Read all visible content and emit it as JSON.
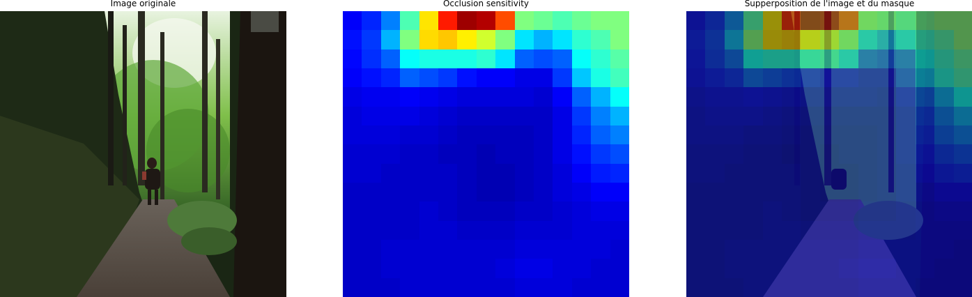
{
  "panels": [
    {
      "title": "Image originale"
    },
    {
      "title": "Occlusion sensitivity"
    },
    {
      "title": "Supperposition de l'image et du masque"
    }
  ],
  "colormap": "jet",
  "sensitivity_grid": [
    [
      0.12,
      0.16,
      0.25,
      0.45,
      0.65,
      0.85,
      0.97,
      0.95,
      0.8,
      0.5,
      0.48,
      0.45,
      0.48,
      0.5,
      0.5
    ],
    [
      0.14,
      0.18,
      0.3,
      0.5,
      0.66,
      0.68,
      0.64,
      0.58,
      0.5,
      0.35,
      0.3,
      0.35,
      0.42,
      0.45,
      0.5
    ],
    [
      0.13,
      0.17,
      0.22,
      0.38,
      0.4,
      0.4,
      0.4,
      0.42,
      0.35,
      0.22,
      0.2,
      0.22,
      0.38,
      0.42,
      0.46
    ],
    [
      0.12,
      0.14,
      0.16,
      0.22,
      0.2,
      0.18,
      0.14,
      0.12,
      0.12,
      0.1,
      0.1,
      0.18,
      0.32,
      0.4,
      0.44
    ],
    [
      0.1,
      0.11,
      0.11,
      0.12,
      0.11,
      0.1,
      0.09,
      0.09,
      0.09,
      0.09,
      0.08,
      0.12,
      0.22,
      0.3,
      0.38
    ],
    [
      0.09,
      0.1,
      0.1,
      0.1,
      0.09,
      0.08,
      0.07,
      0.07,
      0.07,
      0.07,
      0.07,
      0.1,
      0.18,
      0.25,
      0.3
    ],
    [
      0.09,
      0.09,
      0.09,
      0.08,
      0.08,
      0.07,
      0.06,
      0.06,
      0.06,
      0.06,
      0.07,
      0.1,
      0.16,
      0.22,
      0.25
    ],
    [
      0.08,
      0.08,
      0.08,
      0.07,
      0.07,
      0.06,
      0.06,
      0.05,
      0.06,
      0.06,
      0.07,
      0.1,
      0.14,
      0.18,
      0.2
    ],
    [
      0.08,
      0.08,
      0.07,
      0.07,
      0.07,
      0.07,
      0.06,
      0.05,
      0.05,
      0.06,
      0.07,
      0.09,
      0.12,
      0.15,
      0.16
    ],
    [
      0.07,
      0.07,
      0.07,
      0.07,
      0.07,
      0.07,
      0.06,
      0.05,
      0.05,
      0.06,
      0.07,
      0.09,
      0.1,
      0.12,
      0.12
    ],
    [
      0.07,
      0.07,
      0.07,
      0.07,
      0.08,
      0.07,
      0.06,
      0.06,
      0.06,
      0.07,
      0.07,
      0.08,
      0.09,
      0.1,
      0.1
    ],
    [
      0.07,
      0.07,
      0.07,
      0.07,
      0.08,
      0.08,
      0.07,
      0.07,
      0.07,
      0.08,
      0.08,
      0.08,
      0.09,
      0.09,
      0.09
    ],
    [
      0.07,
      0.07,
      0.08,
      0.08,
      0.08,
      0.08,
      0.08,
      0.08,
      0.08,
      0.09,
      0.09,
      0.09,
      0.09,
      0.09,
      0.08
    ],
    [
      0.07,
      0.07,
      0.08,
      0.08,
      0.08,
      0.08,
      0.08,
      0.08,
      0.09,
      0.1,
      0.1,
      0.09,
      0.09,
      0.08,
      0.08
    ],
    [
      0.07,
      0.07,
      0.07,
      0.08,
      0.08,
      0.08,
      0.08,
      0.08,
      0.08,
      0.09,
      0.09,
      0.09,
      0.08,
      0.08,
      0.08
    ]
  ]
}
